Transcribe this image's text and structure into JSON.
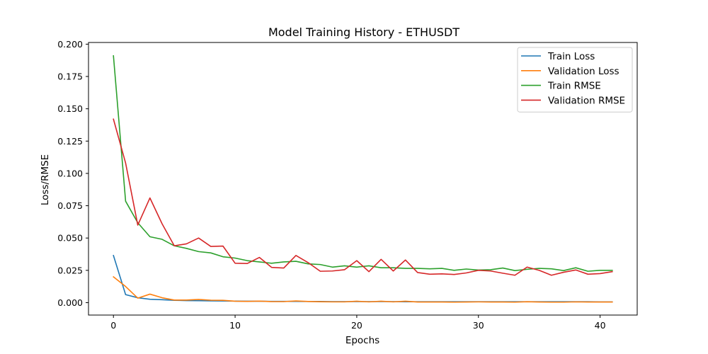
{
  "chart_data": {
    "type": "line",
    "title": "Model Training History - ETHUSDT",
    "xlabel": "Epochs",
    "ylabel": "Loss/RMSE",
    "xlim": [
      -2.05,
      43.05
    ],
    "ylim": [
      -0.0096,
      0.2013
    ],
    "x_ticks": [
      0,
      10,
      20,
      30,
      40
    ],
    "y_ticks": [
      0.0,
      0.025,
      0.05,
      0.075,
      0.1,
      0.125,
      0.15,
      0.175,
      0.2
    ],
    "y_tick_labels": [
      "0.000",
      "0.025",
      "0.050",
      "0.075",
      "0.100",
      "0.125",
      "0.150",
      "0.175",
      "0.200"
    ],
    "grid": false,
    "legend_position": "top-right",
    "x": [
      0,
      1,
      2,
      3,
      4,
      5,
      6,
      7,
      8,
      9,
      10,
      11,
      12,
      13,
      14,
      15,
      16,
      17,
      18,
      19,
      20,
      21,
      22,
      23,
      24,
      25,
      26,
      27,
      28,
      29,
      30,
      31,
      32,
      33,
      34,
      35,
      36,
      37,
      38,
      39,
      40,
      41
    ],
    "series": [
      {
        "name": "Train Loss",
        "color": "#1f77b4",
        "values": [
          0.0365,
          0.0062,
          0.0038,
          0.0026,
          0.0023,
          0.0018,
          0.0016,
          0.0015,
          0.0014,
          0.0013,
          0.0012,
          0.0011,
          0.0011,
          0.001,
          0.001,
          0.001,
          0.0009,
          0.0009,
          0.0008,
          0.0008,
          0.0008,
          0.0008,
          0.0008,
          0.0008,
          0.0007,
          0.0007,
          0.0007,
          0.0007,
          0.0007,
          0.0007,
          0.0007,
          0.0007,
          0.0007,
          0.0007,
          0.0007,
          0.0007,
          0.0007,
          0.0007,
          0.0007,
          0.0007,
          0.0006,
          0.0006
        ]
      },
      {
        "name": "Validation Loss",
        "color": "#ff7f0e",
        "values": [
          0.02,
          0.0125,
          0.0035,
          0.0066,
          0.0038,
          0.002,
          0.002,
          0.0025,
          0.0019,
          0.0018,
          0.0011,
          0.001,
          0.0012,
          0.0008,
          0.0008,
          0.0013,
          0.0009,
          0.0007,
          0.0006,
          0.0006,
          0.0011,
          0.0006,
          0.0011,
          0.0006,
          0.0011,
          0.0005,
          0.0005,
          0.0005,
          0.0004,
          0.0005,
          0.0006,
          0.0005,
          0.0005,
          0.0004,
          0.0007,
          0.0005,
          0.0004,
          0.0004,
          0.0006,
          0.0005,
          0.0005,
          0.0005
        ]
      },
      {
        "name": "Train RMSE",
        "color": "#2ca02c",
        "values": [
          0.191,
          0.0785,
          0.0618,
          0.051,
          0.049,
          0.044,
          0.042,
          0.0395,
          0.0385,
          0.0355,
          0.0345,
          0.0325,
          0.0315,
          0.0305,
          0.0315,
          0.032,
          0.03,
          0.0295,
          0.0275,
          0.0285,
          0.0275,
          0.0285,
          0.027,
          0.027,
          0.0265,
          0.0265,
          0.0262,
          0.0265,
          0.025,
          0.026,
          0.0252,
          0.0255,
          0.0268,
          0.0248,
          0.0258,
          0.0265,
          0.0262,
          0.0248,
          0.027,
          0.0243,
          0.025,
          0.025
        ]
      },
      {
        "name": "Validation RMSE",
        "color": "#d62728",
        "values": [
          0.142,
          0.108,
          0.06,
          0.081,
          0.061,
          0.044,
          0.0455,
          0.05,
          0.0435,
          0.0438,
          0.0305,
          0.0303,
          0.035,
          0.0273,
          0.0268,
          0.0365,
          0.031,
          0.0243,
          0.0245,
          0.0255,
          0.0325,
          0.024,
          0.0335,
          0.0245,
          0.033,
          0.0233,
          0.022,
          0.0223,
          0.0218,
          0.023,
          0.025,
          0.0245,
          0.0228,
          0.0212,
          0.0275,
          0.025,
          0.0212,
          0.0235,
          0.0253,
          0.022,
          0.0225,
          0.024
        ]
      }
    ]
  }
}
